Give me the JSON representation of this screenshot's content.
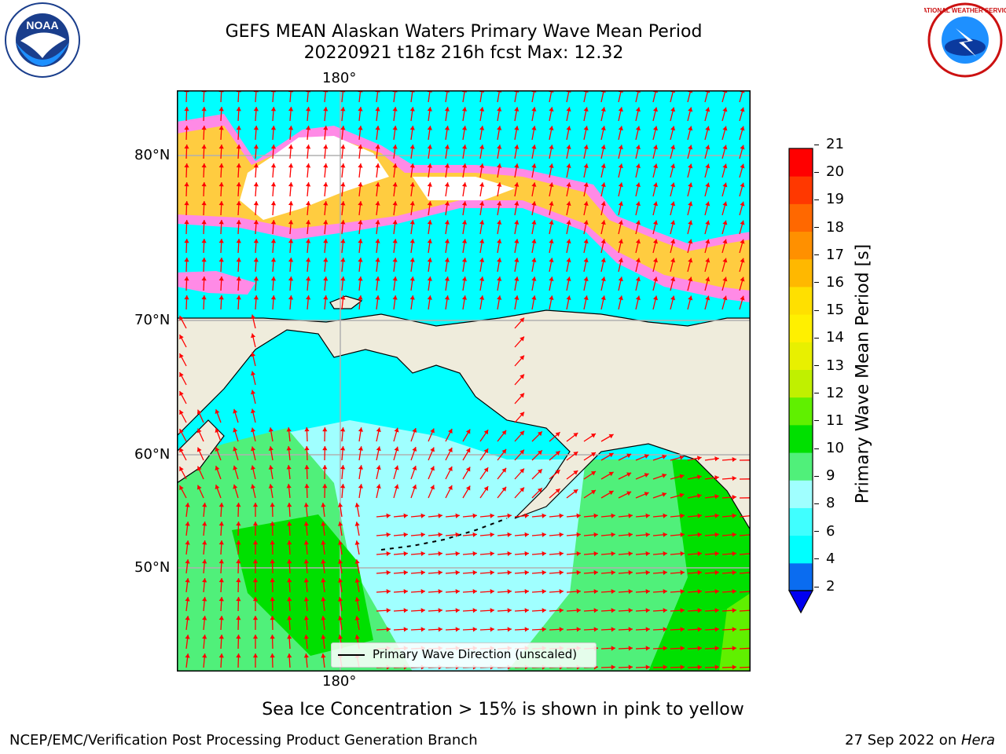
{
  "header": {
    "title_line1": "GEFS MEAN Alaskan Waters Primary Wave Mean Period",
    "title_line2": "20220921 t18z 216h fcst   Max: 12.32"
  },
  "logos": {
    "left": "NOAA",
    "right": "NATIONAL WEATHER SERVICE"
  },
  "map": {
    "lon_label_top": "180°",
    "lon_label_bottom": "180°",
    "lat_labels": [
      "80°N",
      "70°N",
      "60°N",
      "50°N"
    ],
    "legend_label": "Primary Wave Direction (unscaled)",
    "land_color": "#efecdc",
    "arrow_color": "#ff0000"
  },
  "colorbar": {
    "label": "Primary Wave Mean Period [s]",
    "ticks": [
      "2",
      "4",
      "6",
      "8",
      "9",
      "10",
      "11",
      "12",
      "13",
      "14",
      "15",
      "16",
      "17",
      "18",
      "19",
      "20",
      "21"
    ],
    "colors": [
      "#0a6cf0",
      "#00ffff",
      "#40ffff",
      "#a0ffff",
      "#50f07a",
      "#00e000",
      "#60f000",
      "#c0f000",
      "#e8f000",
      "#fff000",
      "#ffe000",
      "#ffb800",
      "#ff9000",
      "#ff6800",
      "#ff3800",
      "#ff0000"
    ],
    "extend_color": "#0000f0"
  },
  "caption": "Sea Ice Concentration > 15% is shown in pink to yellow",
  "footer": {
    "left": "NCEP/EMC/Verification Post Processing Product Generation Branch",
    "right_prefix": "27 Sep 2022 on ",
    "right_host": "Hera"
  }
}
